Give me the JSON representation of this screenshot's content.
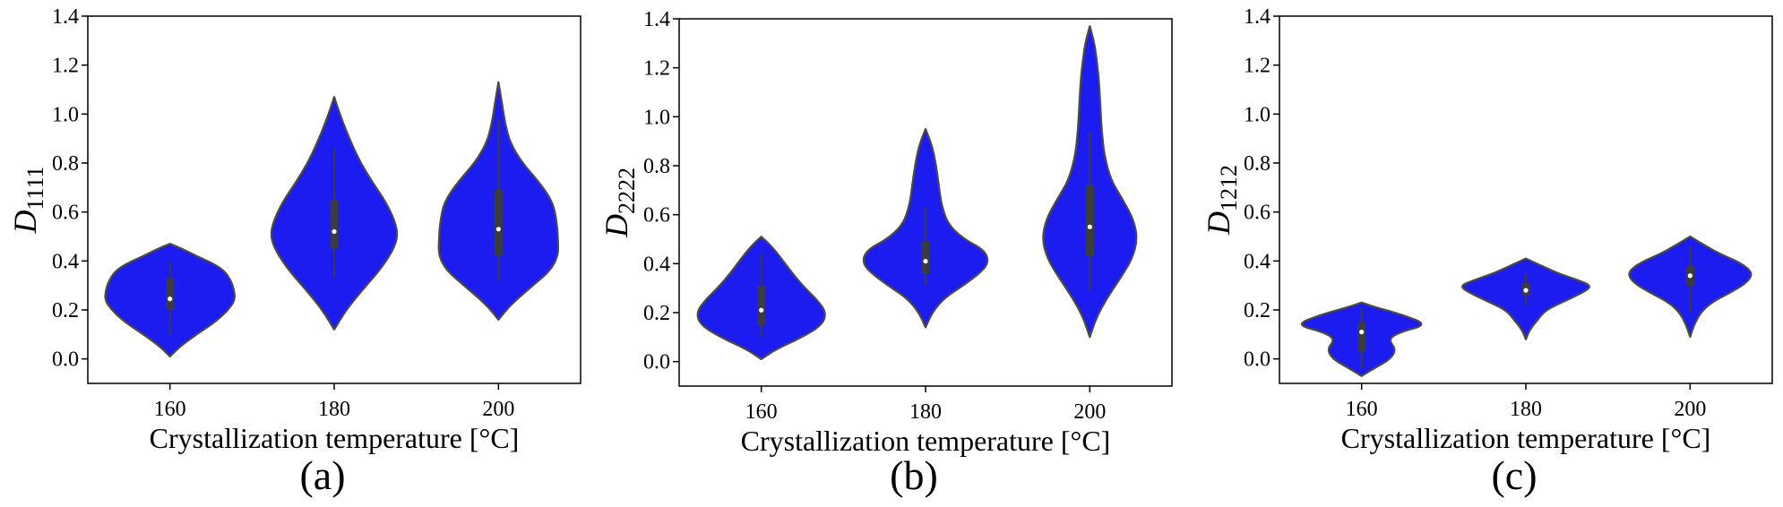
{
  "chart_data": [
    {
      "type": "violin",
      "panel_label": "(a)",
      "ylabel_main": "D",
      "ylabel_sub": "1111",
      "xlabel": "Crystallization temperature [°C]",
      "categories": [
        "160",
        "180",
        "200"
      ],
      "ylim": [
        -0.1,
        1.4
      ],
      "yticks": [
        "0.0",
        "0.2",
        "0.4",
        "0.6",
        "0.8",
        "1.0",
        "1.2",
        "1.4"
      ],
      "color": "#1c1cf0",
      "violins": [
        {
          "category": "160",
          "min": 0.01,
          "max": 0.47,
          "q1": 0.2,
          "median": 0.245,
          "q3": 0.33,
          "whisker_low": 0.1,
          "whisker_high": 0.4,
          "profile": [
            [
              0.01,
              0.0
            ],
            [
              0.05,
              0.15
            ],
            [
              0.1,
              0.4
            ],
            [
              0.15,
              0.68
            ],
            [
              0.2,
              0.88
            ],
            [
              0.24,
              0.98
            ],
            [
              0.28,
              0.97
            ],
            [
              0.32,
              0.92
            ],
            [
              0.36,
              0.82
            ],
            [
              0.39,
              0.65
            ],
            [
              0.42,
              0.4
            ],
            [
              0.45,
              0.18
            ],
            [
              0.47,
              0.0
            ]
          ]
        },
        {
          "category": "180",
          "min": 0.12,
          "max": 1.07,
          "q1": 0.45,
          "median": 0.52,
          "q3": 0.65,
          "whisker_low": 0.33,
          "whisker_high": 0.86,
          "profile": [
            [
              0.12,
              0.0
            ],
            [
              0.2,
              0.18
            ],
            [
              0.28,
              0.42
            ],
            [
              0.36,
              0.68
            ],
            [
              0.44,
              0.88
            ],
            [
              0.5,
              0.96
            ],
            [
              0.56,
              0.92
            ],
            [
              0.64,
              0.78
            ],
            [
              0.72,
              0.58
            ],
            [
              0.8,
              0.4
            ],
            [
              0.88,
              0.26
            ],
            [
              0.96,
              0.14
            ],
            [
              1.02,
              0.06
            ],
            [
              1.07,
              0.0
            ]
          ]
        },
        {
          "category": "200",
          "min": 0.16,
          "max": 1.13,
          "q1": 0.42,
          "median": 0.53,
          "q3": 0.69,
          "whisker_low": 0.32,
          "whisker_high": 0.98,
          "profile": [
            [
              0.16,
              0.0
            ],
            [
              0.22,
              0.18
            ],
            [
              0.3,
              0.52
            ],
            [
              0.36,
              0.78
            ],
            [
              0.42,
              0.9
            ],
            [
              0.48,
              0.9
            ],
            [
              0.56,
              0.88
            ],
            [
              0.64,
              0.82
            ],
            [
              0.72,
              0.62
            ],
            [
              0.8,
              0.36
            ],
            [
              0.88,
              0.18
            ],
            [
              0.96,
              0.1
            ],
            [
              1.05,
              0.05
            ],
            [
              1.13,
              0.0
            ]
          ]
        }
      ]
    },
    {
      "type": "violin",
      "panel_label": "(b)",
      "ylabel_main": "D",
      "ylabel_sub": "2222",
      "xlabel": "Crystallization temperature [°C]",
      "categories": [
        "160",
        "180",
        "200"
      ],
      "ylim": [
        -0.1,
        1.4
      ],
      "yticks": [
        "0.0",
        "0.2",
        "0.4",
        "0.6",
        "0.8",
        "1.0",
        "1.2",
        "1.4"
      ],
      "color": "#1c1cf0",
      "violins": [
        {
          "category": "160",
          "min": 0.01,
          "max": 0.51,
          "q1": 0.15,
          "median": 0.21,
          "q3": 0.31,
          "whisker_low": 0.1,
          "whisker_high": 0.44,
          "profile": [
            [
              0.01,
              0.0
            ],
            [
              0.05,
              0.22
            ],
            [
              0.1,
              0.62
            ],
            [
              0.15,
              0.92
            ],
            [
              0.2,
              0.98
            ],
            [
              0.25,
              0.85
            ],
            [
              0.3,
              0.66
            ],
            [
              0.35,
              0.5
            ],
            [
              0.4,
              0.36
            ],
            [
              0.45,
              0.22
            ],
            [
              0.48,
              0.12
            ],
            [
              0.51,
              0.0
            ]
          ]
        },
        {
          "category": "180",
          "min": 0.14,
          "max": 0.95,
          "q1": 0.36,
          "median": 0.41,
          "q3": 0.49,
          "whisker_low": 0.31,
          "whisker_high": 0.63,
          "profile": [
            [
              0.14,
              0.0
            ],
            [
              0.2,
              0.1
            ],
            [
              0.26,
              0.28
            ],
            [
              0.32,
              0.62
            ],
            [
              0.38,
              0.9
            ],
            [
              0.42,
              0.95
            ],
            [
              0.46,
              0.86
            ],
            [
              0.5,
              0.58
            ],
            [
              0.56,
              0.34
            ],
            [
              0.64,
              0.24
            ],
            [
              0.72,
              0.2
            ],
            [
              0.8,
              0.16
            ],
            [
              0.88,
              0.1
            ],
            [
              0.95,
              0.0
            ]
          ]
        },
        {
          "category": "200",
          "min": 0.1,
          "max": 1.37,
          "q1": 0.43,
          "median": 0.55,
          "q3": 0.72,
          "whisker_low": 0.29,
          "whisker_high": 0.94,
          "profile": [
            [
              0.1,
              0.0
            ],
            [
              0.18,
              0.1
            ],
            [
              0.26,
              0.26
            ],
            [
              0.34,
              0.46
            ],
            [
              0.42,
              0.64
            ],
            [
              0.5,
              0.72
            ],
            [
              0.58,
              0.66
            ],
            [
              0.66,
              0.5
            ],
            [
              0.74,
              0.32
            ],
            [
              0.84,
              0.22
            ],
            [
              0.94,
              0.18
            ],
            [
              1.04,
              0.16
            ],
            [
              1.14,
              0.14
            ],
            [
              1.22,
              0.11
            ],
            [
              1.3,
              0.07
            ],
            [
              1.37,
              0.0
            ]
          ]
        }
      ]
    },
    {
      "type": "violin",
      "panel_label": "(c)",
      "ylabel_main": "D",
      "ylabel_sub": "1212",
      "xlabel": "Crystallization temperature [°C]",
      "categories": [
        "160",
        "180",
        "200"
      ],
      "ylim": [
        -0.1,
        1.4
      ],
      "yticks": [
        "0.0",
        "0.2",
        "0.4",
        "0.6",
        "0.8",
        "1.0",
        "1.2",
        "1.4"
      ],
      "color": "#1c1cf0",
      "violins": [
        {
          "category": "160",
          "min": -0.07,
          "max": 0.23,
          "q1": 0.03,
          "median": 0.11,
          "q3": 0.15,
          "whisker_low": -0.04,
          "whisker_high": 0.21,
          "profile": [
            [
              -0.07,
              0.0
            ],
            [
              -0.04,
              0.18
            ],
            [
              0.0,
              0.44
            ],
            [
              0.04,
              0.52
            ],
            [
              0.08,
              0.4
            ],
            [
              0.11,
              0.58
            ],
            [
              0.14,
              1.0
            ],
            [
              0.18,
              0.62
            ],
            [
              0.21,
              0.22
            ],
            [
              0.23,
              0.0
            ]
          ]
        },
        {
          "category": "180",
          "min": 0.08,
          "max": 0.41,
          "q1": 0.26,
          "median": 0.28,
          "q3": 0.31,
          "whisker_low": 0.22,
          "whisker_high": 0.35,
          "profile": [
            [
              0.08,
              0.0
            ],
            [
              0.12,
              0.06
            ],
            [
              0.16,
              0.18
            ],
            [
              0.2,
              0.3
            ],
            [
              0.24,
              0.62
            ],
            [
              0.28,
              0.92
            ],
            [
              0.3,
              0.98
            ],
            [
              0.32,
              0.8
            ],
            [
              0.35,
              0.48
            ],
            [
              0.38,
              0.24
            ],
            [
              0.41,
              0.0
            ]
          ]
        },
        {
          "category": "200",
          "min": 0.09,
          "max": 0.5,
          "q1": 0.3,
          "median": 0.34,
          "q3": 0.38,
          "whisker_low": 0.19,
          "whisker_high": 0.46,
          "profile": [
            [
              0.09,
              0.0
            ],
            [
              0.14,
              0.06
            ],
            [
              0.19,
              0.16
            ],
            [
              0.23,
              0.32
            ],
            [
              0.27,
              0.6
            ],
            [
              0.31,
              0.85
            ],
            [
              0.35,
              0.95
            ],
            [
              0.39,
              0.78
            ],
            [
              0.43,
              0.44
            ],
            [
              0.47,
              0.18
            ],
            [
              0.5,
              0.0
            ]
          ]
        }
      ]
    }
  ]
}
